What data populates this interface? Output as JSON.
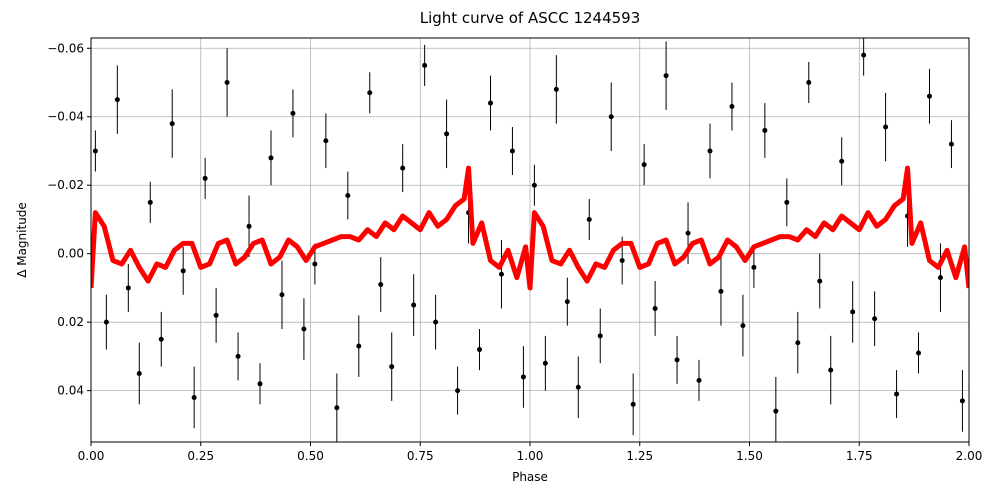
{
  "chart_data": {
    "type": "scatter",
    "title": "Light curve of ASCC 1244593",
    "x_label": "Phase",
    "y_label": "Δ Magnitude",
    "xlim": [
      0,
      2
    ],
    "ylim": [
      -0.063,
      0.055
    ],
    "y_inverted": true,
    "grid": true,
    "xticks": [
      {
        "value": 0,
        "label": "0.00"
      },
      {
        "value": 0.25,
        "label": "0.25"
      },
      {
        "value": 0.5,
        "label": "0.50"
      },
      {
        "value": 0.75,
        "label": "0.75"
      },
      {
        "value": 1,
        "label": "1.00"
      },
      {
        "value": 1.25,
        "label": "1.25"
      },
      {
        "value": 1.5,
        "label": "1.50"
      },
      {
        "value": 1.75,
        "label": "1.75"
      },
      {
        "value": 2,
        "label": "2.00"
      }
    ],
    "yticks": [
      {
        "value": -0.06,
        "label": "−0.06"
      },
      {
        "value": -0.04,
        "label": "−0.04"
      },
      {
        "value": -0.02,
        "label": "−0.02"
      },
      {
        "value": 0,
        "label": "0.00"
      },
      {
        "value": 0.02,
        "label": "0.02"
      },
      {
        "value": 0.04,
        "label": "0.04"
      }
    ],
    "series": [
      {
        "mark": "errorbar",
        "color": "#000000",
        "x": [
          0.01,
          0.035,
          0.06,
          0.085,
          0.11,
          0.135,
          0.16,
          0.185,
          0.21,
          0.235,
          0.26,
          0.285,
          0.31,
          0.335,
          0.36,
          0.385,
          0.41,
          0.435,
          0.46,
          0.485,
          0.51,
          0.535,
          0.56,
          0.585,
          0.61,
          0.635,
          0.66,
          0.685,
          0.71,
          0.735,
          0.76,
          0.785,
          0.81,
          0.835,
          0.86,
          0.885,
          0.91,
          0.935,
          0.96,
          0.985,
          1.01,
          1.035,
          1.06,
          1.085,
          1.11,
          1.135,
          1.16,
          1.185,
          1.21,
          1.235,
          1.26,
          1.285,
          1.31,
          1.335,
          1.36,
          1.385,
          1.41,
          1.435,
          1.46,
          1.485,
          1.51,
          1.535,
          1.56,
          1.585,
          1.61,
          1.635,
          1.66,
          1.685,
          1.71,
          1.735,
          1.76,
          1.785,
          1.81,
          1.835,
          1.86,
          1.885,
          1.91,
          1.935,
          1.96,
          1.985
        ],
        "values": [
          -0.03,
          0.02,
          -0.045,
          0.01,
          0.035,
          -0.015,
          0.025,
          -0.038,
          0.005,
          0.042,
          -0.022,
          0.018,
          -0.05,
          0.03,
          -0.008,
          0.038,
          -0.028,
          0.012,
          -0.041,
          0.022,
          0.003,
          -0.033,
          0.045,
          -0.017,
          0.027,
          -0.047,
          0.009,
          0.033,
          -0.025,
          0.015,
          -0.055,
          0.02,
          -0.035,
          0.04,
          -0.012,
          0.028,
          -0.044,
          0.006,
          -0.03,
          0.036,
          -0.02,
          0.032,
          -0.048,
          0.014,
          0.039,
          -0.01,
          0.024,
          -0.04,
          0.002,
          0.044,
          -0.026,
          0.016,
          -0.052,
          0.031,
          -0.006,
          0.037,
          -0.03,
          0.011,
          -0.043,
          0.021,
          0.004,
          -0.036,
          0.046,
          -0.015,
          0.026,
          -0.05,
          0.008,
          0.034,
          -0.027,
          0.017,
          -0.058,
          0.019,
          -0.037,
          0.041,
          -0.011,
          0.029,
          -0.046,
          0.007,
          -0.032,
          0.043
        ],
        "errors": [
          0.006,
          0.008,
          0.01,
          0.007,
          0.009,
          0.006,
          0.008,
          0.01,
          0.007,
          0.009,
          0.006,
          0.008,
          0.01,
          0.007,
          0.009,
          0.006,
          0.008,
          0.01,
          0.007,
          0.009,
          0.006,
          0.008,
          0.01,
          0.007,
          0.009,
          0.006,
          0.008,
          0.01,
          0.007,
          0.009,
          0.006,
          0.008,
          0.01,
          0.007,
          0.009,
          0.006,
          0.008,
          0.01,
          0.007,
          0.009,
          0.006,
          0.008,
          0.01,
          0.007,
          0.009,
          0.006,
          0.008,
          0.01,
          0.007,
          0.009,
          0.006,
          0.008,
          0.01,
          0.007,
          0.009,
          0.006,
          0.008,
          0.01,
          0.007,
          0.009,
          0.006,
          0.008,
          0.01,
          0.007,
          0.009,
          0.006,
          0.008,
          0.01,
          0.007,
          0.009,
          0.006,
          0.008,
          0.01,
          0.007,
          0.009,
          0.006,
          0.008,
          0.01,
          0.007,
          0.009
        ]
      },
      {
        "mark": "line",
        "color": "#ff0000",
        "x": [
          0,
          0.01,
          0.03,
          0.05,
          0.07,
          0.09,
          0.11,
          0.13,
          0.15,
          0.17,
          0.19,
          0.21,
          0.23,
          0.25,
          0.27,
          0.29,
          0.31,
          0.33,
          0.35,
          0.37,
          0.39,
          0.41,
          0.43,
          0.45,
          0.47,
          0.49,
          0.51,
          0.53,
          0.55,
          0.57,
          0.59,
          0.61,
          0.63,
          0.65,
          0.67,
          0.69,
          0.71,
          0.73,
          0.75,
          0.77,
          0.79,
          0.81,
          0.83,
          0.85,
          0.86,
          0.87,
          0.89,
          0.91,
          0.93,
          0.95,
          0.97,
          0.99,
          1,
          1.01,
          1.03,
          1.05,
          1.07,
          1.09,
          1.11,
          1.13,
          1.15,
          1.17,
          1.19,
          1.21,
          1.23,
          1.25,
          1.27,
          1.29,
          1.31,
          1.33,
          1.35,
          1.37,
          1.39,
          1.41,
          1.43,
          1.45,
          1.47,
          1.49,
          1.51,
          1.53,
          1.55,
          1.57,
          1.59,
          1.61,
          1.63,
          1.65,
          1.67,
          1.69,
          1.71,
          1.73,
          1.75,
          1.77,
          1.79,
          1.81,
          1.83,
          1.85,
          1.86,
          1.87,
          1.89,
          1.91,
          1.93,
          1.95,
          1.97,
          1.99,
          2
        ],
        "values": [
          0.01,
          -0.012,
          -0.008,
          0.002,
          0.003,
          -0.001,
          0.004,
          0.008,
          0.003,
          0.004,
          -0.001,
          -0.003,
          -0.003,
          0.004,
          0.003,
          -0.003,
          -0.004,
          0.003,
          0.001,
          -0.003,
          -0.004,
          0.003,
          0.001,
          -0.004,
          -0.002,
          0.002,
          -0.002,
          -0.003,
          -0.004,
          -0.005,
          -0.005,
          -0.004,
          -0.007,
          -0.005,
          -0.009,
          -0.007,
          -0.011,
          -0.009,
          -0.007,
          -0.012,
          -0.008,
          -0.01,
          -0.014,
          -0.016,
          -0.025,
          -0.003,
          -0.009,
          0.002,
          0.004,
          -0.001,
          0.007,
          -0.002,
          0.01,
          -0.012,
          -0.008,
          0.002,
          0.003,
          -0.001,
          0.004,
          0.008,
          0.003,
          0.004,
          -0.001,
          -0.003,
          -0.003,
          0.004,
          0.003,
          -0.003,
          -0.004,
          0.003,
          0.001,
          -0.003,
          -0.004,
          0.003,
          0.001,
          -0.004,
          -0.002,
          0.002,
          -0.002,
          -0.003,
          -0.004,
          -0.005,
          -0.005,
          -0.004,
          -0.007,
          -0.005,
          -0.009,
          -0.007,
          -0.011,
          -0.009,
          -0.007,
          -0.012,
          -0.008,
          -0.01,
          -0.014,
          -0.016,
          -0.025,
          -0.003,
          -0.009,
          0.002,
          0.004,
          -0.001,
          0.007,
          -0.002,
          0.01
        ]
      }
    ]
  }
}
